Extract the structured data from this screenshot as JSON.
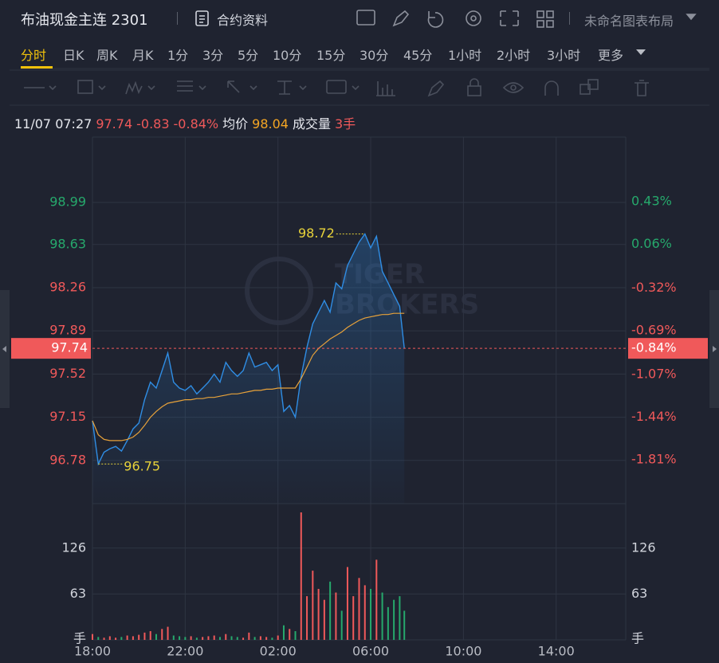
{
  "header": {
    "title": "布油现金主连 2301",
    "info_link": "合约资料",
    "layout_name": "未命名图表布局"
  },
  "tabs": [
    "分时",
    "日K",
    "周K",
    "月K",
    "1分",
    "3分",
    "5分",
    "10分",
    "15分",
    "30分",
    "45分",
    "1小时",
    "2小时",
    "3小时",
    "更多"
  ],
  "active_tab_index": 0,
  "quote": {
    "time": "11/07 07:27",
    "price": "97.74",
    "change": "-0.83",
    "change_pct": "-0.84%",
    "avg_label": "均价",
    "avg": "98.04",
    "volume_label": "成交量",
    "volume": "3手"
  },
  "watermark": [
    "TIGER",
    "BROKERS"
  ],
  "chart_data": {
    "type": "line",
    "x": [
      "18:00",
      "18:15",
      "18:30",
      "18:45",
      "19:00",
      "19:15",
      "19:30",
      "19:45",
      "20:00",
      "20:15",
      "20:30",
      "20:45",
      "21:00",
      "21:15",
      "21:30",
      "21:45",
      "22:00",
      "22:15",
      "22:30",
      "22:45",
      "23:00",
      "23:15",
      "23:30",
      "23:45",
      "00:00",
      "00:15",
      "00:30",
      "00:45",
      "01:00",
      "01:15",
      "01:30",
      "01:45",
      "02:00",
      "02:15",
      "02:30",
      "02:45",
      "03:00",
      "03:15",
      "03:30",
      "03:45",
      "04:00",
      "04:15",
      "04:30",
      "04:45",
      "05:00",
      "05:15",
      "05:30",
      "05:45",
      "06:00",
      "06:15",
      "06:30",
      "06:45",
      "07:00",
      "07:15",
      "07:27"
    ],
    "series": [
      {
        "name": "价格",
        "color": "#2f8de4",
        "values": [
          97.12,
          96.75,
          96.85,
          96.88,
          96.9,
          96.86,
          96.95,
          97.05,
          97.1,
          97.3,
          97.45,
          97.4,
          97.55,
          97.7,
          97.45,
          97.4,
          97.38,
          97.42,
          97.35,
          97.4,
          97.45,
          97.52,
          97.45,
          97.62,
          97.55,
          97.5,
          97.55,
          97.7,
          97.58,
          97.6,
          97.62,
          97.55,
          97.6,
          97.2,
          97.25,
          97.15,
          97.5,
          97.75,
          97.95,
          98.05,
          98.15,
          98.05,
          98.3,
          98.25,
          98.45,
          98.55,
          98.65,
          98.72,
          98.6,
          98.7,
          98.4,
          98.3,
          98.2,
          98.1,
          97.74
        ]
      },
      {
        "name": "均价",
        "color": "#e8a23a",
        "values": [
          97.12,
          97.0,
          96.96,
          96.95,
          96.95,
          96.95,
          96.96,
          96.98,
          97.02,
          97.08,
          97.15,
          97.2,
          97.24,
          97.27,
          97.28,
          97.29,
          97.3,
          97.3,
          97.31,
          97.31,
          97.32,
          97.32,
          97.33,
          97.34,
          97.35,
          97.35,
          97.36,
          97.37,
          97.38,
          97.38,
          97.39,
          97.39,
          97.4,
          97.4,
          97.4,
          97.4,
          97.48,
          97.58,
          97.68,
          97.74,
          97.78,
          97.82,
          97.85,
          97.88,
          97.92,
          97.95,
          97.98,
          98.0,
          98.01,
          98.02,
          98.03,
          98.03,
          98.04,
          98.04,
          98.04
        ]
      }
    ],
    "volume": [
      8,
      4,
      3,
      5,
      3,
      4,
      6,
      5,
      7,
      10,
      12,
      8,
      15,
      18,
      6,
      5,
      4,
      5,
      3,
      4,
      5,
      6,
      4,
      8,
      5,
      4,
      3,
      10,
      4,
      5,
      4,
      3,
      6,
      20,
      15,
      12,
      175,
      60,
      95,
      70,
      55,
      80,
      65,
      40,
      100,
      60,
      85,
      75,
      70,
      110,
      65,
      45,
      55,
      60,
      40
    ],
    "up_color": "#f0595a",
    "down_color": "#26a96c",
    "xlim": [
      "18:00",
      "17:00"
    ],
    "xticks": [
      "18:00",
      "22:00",
      "02:00",
      "06:00",
      "10:00",
      "14:00"
    ],
    "ylim": [
      96.41,
      99.55
    ],
    "yticks": [
      98.99,
      98.63,
      98.26,
      97.89,
      97.52,
      97.15,
      96.78
    ],
    "y2lim": [
      -2.19,
      0.99
    ],
    "y2ticks": [
      {
        "value": 0.43,
        "label": "0.43%"
      },
      {
        "value": 0.06,
        "label": "0.06%"
      },
      {
        "value": -0.32,
        "label": "-0.32%"
      },
      {
        "value": -0.69,
        "label": "-0.69%"
      },
      {
        "value": -1.07,
        "label": "-1.07%"
      },
      {
        "value": -1.44,
        "label": "-1.44%"
      },
      {
        "value": -1.81,
        "label": "-1.81%"
      }
    ],
    "vol_ylim": [
      0,
      175
    ],
    "vol_yticks": [
      63,
      126
    ],
    "vol_unit": "手",
    "max_point": {
      "x": "05:45",
      "value": 98.72
    },
    "min_point": {
      "x": "18:15",
      "value": 96.75
    },
    "grid": true
  }
}
